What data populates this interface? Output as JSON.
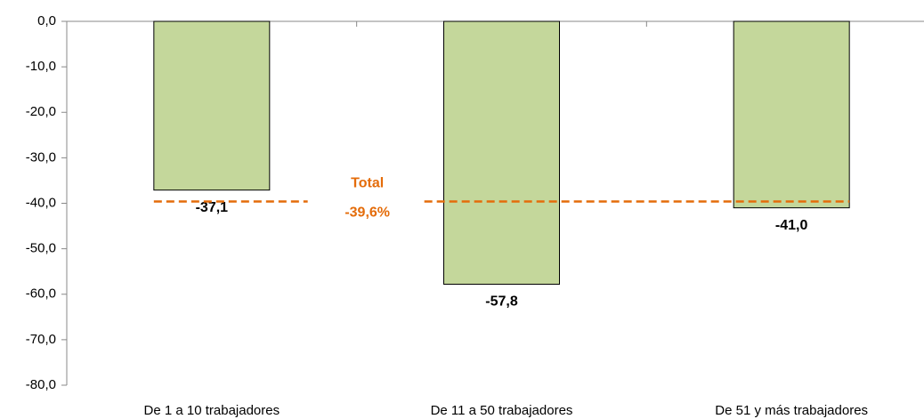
{
  "chart_data": {
    "type": "bar",
    "categories": [
      "De 1 a 10 trabajadores",
      "De 11 a 50 trabajadores",
      "De 51 y más trabajadores"
    ],
    "values": [
      -37.1,
      -57.8,
      -41.0
    ],
    "value_labels": [
      "-37,1",
      "-57,8",
      "-41,0"
    ],
    "color": "#c4d79b",
    "ylim": [
      -80,
      0
    ],
    "yticks": [
      {
        "value": 0,
        "label": "0,0"
      },
      {
        "value": -10,
        "label": "-10,0"
      },
      {
        "value": -20,
        "label": "-20,0"
      },
      {
        "value": -30,
        "label": "-30,0"
      },
      {
        "value": -40,
        "label": "-40,0"
      },
      {
        "value": -50,
        "label": "-50,0"
      },
      {
        "value": -60,
        "label": "-60,0"
      },
      {
        "value": -70,
        "label": "-70,0"
      },
      {
        "value": -80,
        "label": "-80,0"
      }
    ],
    "reference_line": {
      "value": -39.6,
      "label": "Total",
      "value_label": "-39,6%",
      "color": "#e46c0a"
    }
  }
}
